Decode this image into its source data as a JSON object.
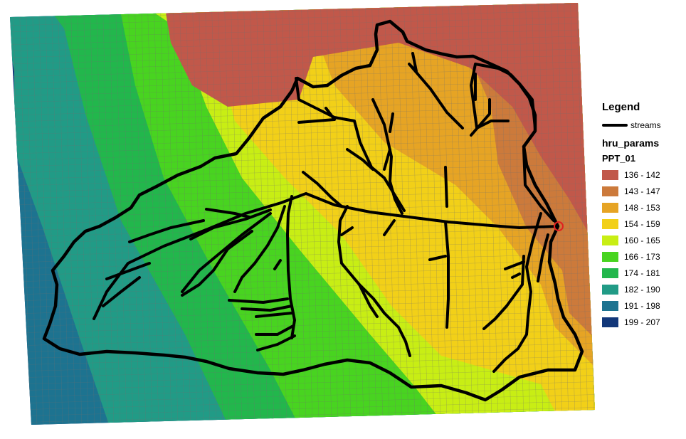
{
  "legend": {
    "title": "Legend",
    "stream_label": "streams",
    "layer_name": "hru_params",
    "field_name": "PPT_01",
    "classes": [
      {
        "label": "136 - 142",
        "color": "#c1584a"
      },
      {
        "label": "143 - 147",
        "color": "#cc7a3b"
      },
      {
        "label": "148 - 153",
        "color": "#e6a424"
      },
      {
        "label": "154 - 159",
        "color": "#f2d018"
      },
      {
        "label": "160 - 165",
        "color": "#c8ee14"
      },
      {
        "label": "166 - 173",
        "color": "#48d420"
      },
      {
        "label": "174 - 181",
        "color": "#22b74c"
      },
      {
        "label": "182 - 190",
        "color": "#219b86"
      },
      {
        "label": "191 - 198",
        "color": "#1d7390"
      },
      {
        "label": "199 - 207",
        "color": "#123779"
      }
    ]
  },
  "map": {
    "grid_line_color": "#7b7b7b",
    "stream_color": "#000000",
    "outlet_marker_color": "#e02020"
  }
}
